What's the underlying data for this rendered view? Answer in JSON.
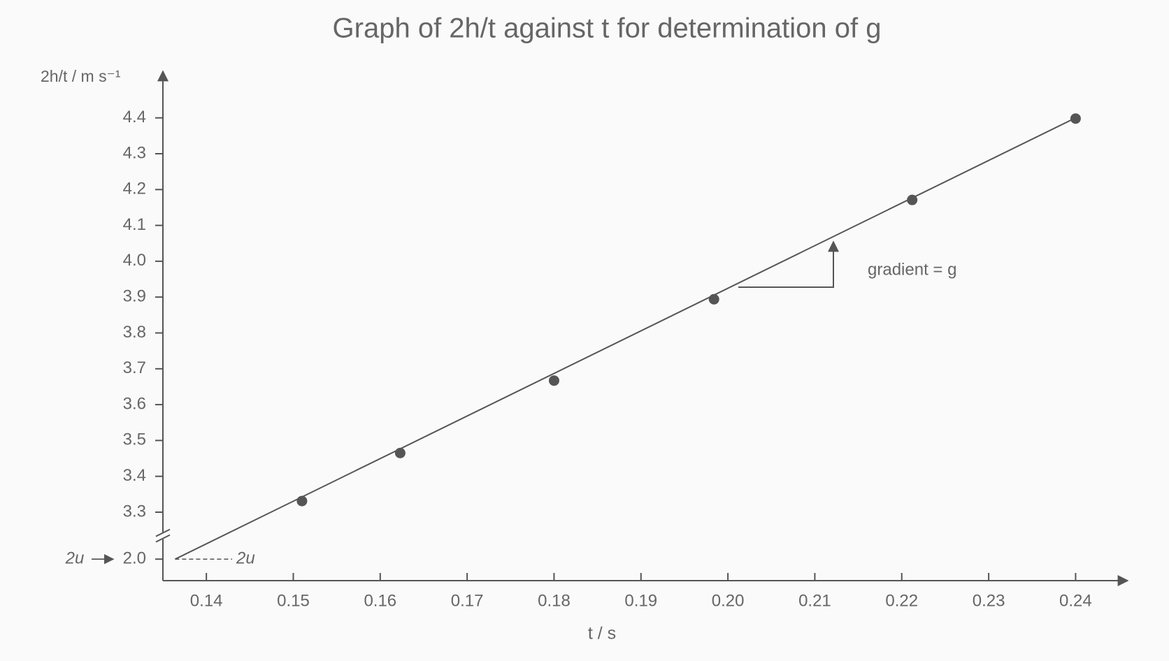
{
  "chart_data": {
    "type": "scatter",
    "title": "Graph of 2h/t against t for determination of g",
    "x_label": "t / s",
    "y_label": "2h/t / m s⁻¹",
    "x": [
      0.151,
      0.1623,
      0.18,
      0.1984,
      0.2212,
      0.24
    ],
    "values": [
      3.331,
      3.465,
      3.667,
      3.894,
      4.171,
      4.398
    ],
    "color": "#555555",
    "fit_line": {
      "x": [
        0.1364,
        0.24
      ],
      "y": [
        2.0,
        4.4
      ]
    },
    "xlim": [
      0.135,
      0.246
    ],
    "xticks": [
      0.14,
      0.15,
      0.16,
      0.17,
      0.18,
      0.19,
      {
        "value": 0.2,
        "label": "0.20"
      },
      0.21,
      0.22,
      0.23,
      0.24
    ],
    "ylim": [
      1.94,
      4.53
    ],
    "ybreak": [
      2.0,
      3.3
    ],
    "yticks": [
      {
        "value": 2.0,
        "label": "2.0"
      },
      3.3,
      3.4,
      3.5,
      3.6,
      3.7,
      3.8,
      3.9,
      {
        "value": 4.0,
        "label": "4.0"
      },
      4.1,
      4.2,
      4.3,
      4.4
    ],
    "annotations": [
      "2u",
      "2u",
      "gradient = g"
    ]
  }
}
